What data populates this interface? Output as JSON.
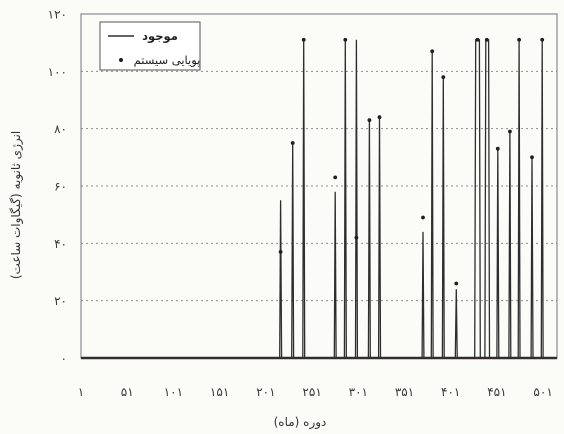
{
  "chart_data": {
    "type": "line",
    "xlabel": "دوره (ماه)",
    "ylabel": "انرژی ثانویه (گیگاوات ساعت)",
    "xlim": [
      1,
      516
    ],
    "ylim": [
      0,
      120
    ],
    "xticks": [
      1,
      51,
      101,
      151,
      201,
      251,
      301,
      351,
      401,
      451,
      501
    ],
    "xtick_labels": [
      "۱",
      "۵۱",
      "۱۰۱",
      "۱۵۱",
      "۲۰۱",
      "۲۵۱",
      "۳۰۱",
      "۳۵۱",
      "۴۰۱",
      "۴۵۱",
      "۵۰۱"
    ],
    "yticks": [
      0,
      20,
      40,
      60,
      80,
      100,
      120
    ],
    "ytick_labels": [
      "۰",
      "۲۰",
      "۴۰",
      "۶۰",
      "۸۰",
      "۱۰۰",
      "۱۲۰"
    ],
    "grid": true,
    "legend": "top-left",
    "series": [
      {
        "name": "موجود",
        "type": "line",
        "color": "#2e2e2e",
        "x": [
          1,
          216,
          217,
          218,
          229,
          230,
          231,
          241,
          242,
          243,
          275,
          276,
          277,
          286,
          287,
          288,
          298,
          299,
          300,
          312,
          313,
          314,
          323,
          324,
          325,
          370,
          371,
          372,
          380,
          381,
          382,
          392,
          393,
          394,
          406,
          407,
          408,
          427,
          428,
          432,
          433,
          438,
          439,
          442,
          443,
          451,
          452,
          453,
          464,
          465,
          466,
          474,
          475,
          476,
          488,
          489,
          490,
          499,
          500,
          501,
          516
        ],
        "y": [
          0,
          0,
          55,
          0,
          0,
          75,
          0,
          0,
          111,
          0,
          0,
          58,
          0,
          0,
          111,
          0,
          0,
          111,
          0,
          0,
          83,
          0,
          0,
          84,
          0,
          0,
          44,
          0,
          0,
          107,
          0,
          0,
          98,
          0,
          0,
          24,
          0,
          0,
          111,
          111,
          0,
          0,
          111,
          111,
          0,
          0,
          73,
          0,
          0,
          79,
          0,
          0,
          111,
          0,
          0,
          70,
          0,
          0,
          111,
          0,
          0
        ]
      },
      {
        "name": "پویایی سیستم",
        "type": "scatter",
        "color": "#1f1f1f",
        "x": [
          217,
          230,
          242,
          276,
          287,
          299,
          313,
          324,
          371,
          381,
          393,
          407,
          430,
          440,
          452,
          465,
          475,
          489,
          500
        ],
        "y": [
          37,
          75,
          111,
          63,
          111,
          42,
          83,
          84,
          49,
          107,
          98,
          26,
          111,
          111,
          73,
          79,
          111,
          70,
          111
        ]
      }
    ]
  }
}
